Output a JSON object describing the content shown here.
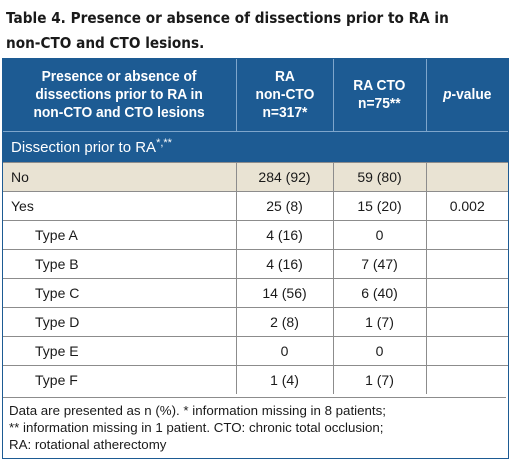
{
  "caption": {
    "line1": "Table 4. Presence or absence of dissections prior to RA in",
    "line2": "non-CTO and CTO lesions."
  },
  "header": {
    "col1": [
      "Presence or absence of",
      "dissections prior to RA in",
      "non-CTO and CTO lesions"
    ],
    "col2": [
      "RA",
      "non-CTO",
      "n=317*"
    ],
    "col3": [
      "RA CTO",
      "n=75**"
    ],
    "col4_italic": "p",
    "col4_rest": "-value"
  },
  "section": {
    "label": "Dissection prior to RA",
    "sup": "*,**"
  },
  "rows": [
    {
      "label": "No",
      "noncto": "284 (92)",
      "cto": "59 (80)",
      "p": ""
    },
    {
      "label": "Yes",
      "noncto": "25 (8)",
      "cto": "15 (20)",
      "p": "0.002"
    },
    {
      "label": "Type A",
      "noncto": "4 (16)",
      "cto": "0",
      "p": ""
    },
    {
      "label": "Type B",
      "noncto": "4 (16)",
      "cto": "7 (47)",
      "p": ""
    },
    {
      "label": "Type C",
      "noncto": "14 (56)",
      "cto": "6 (40)",
      "p": ""
    },
    {
      "label": "Type D",
      "noncto": "2 (8)",
      "cto": "1 (7)",
      "p": ""
    },
    {
      "label": "Type E",
      "noncto": "0",
      "cto": "0",
      "p": ""
    },
    {
      "label": "Type F",
      "noncto": "1 (4)",
      "cto": "1 (7)",
      "p": ""
    }
  ],
  "footnote": {
    "line1": "Data are presented as n (%). * information missing in 8 patients;",
    "line2": "** information missing in 1 patient. CTO: chronic total occlusion;",
    "line3": "RA: rotational atherectomy"
  },
  "colors": {
    "header_bg": "#1d5b93",
    "shaded_row": "#e9e3d3"
  }
}
